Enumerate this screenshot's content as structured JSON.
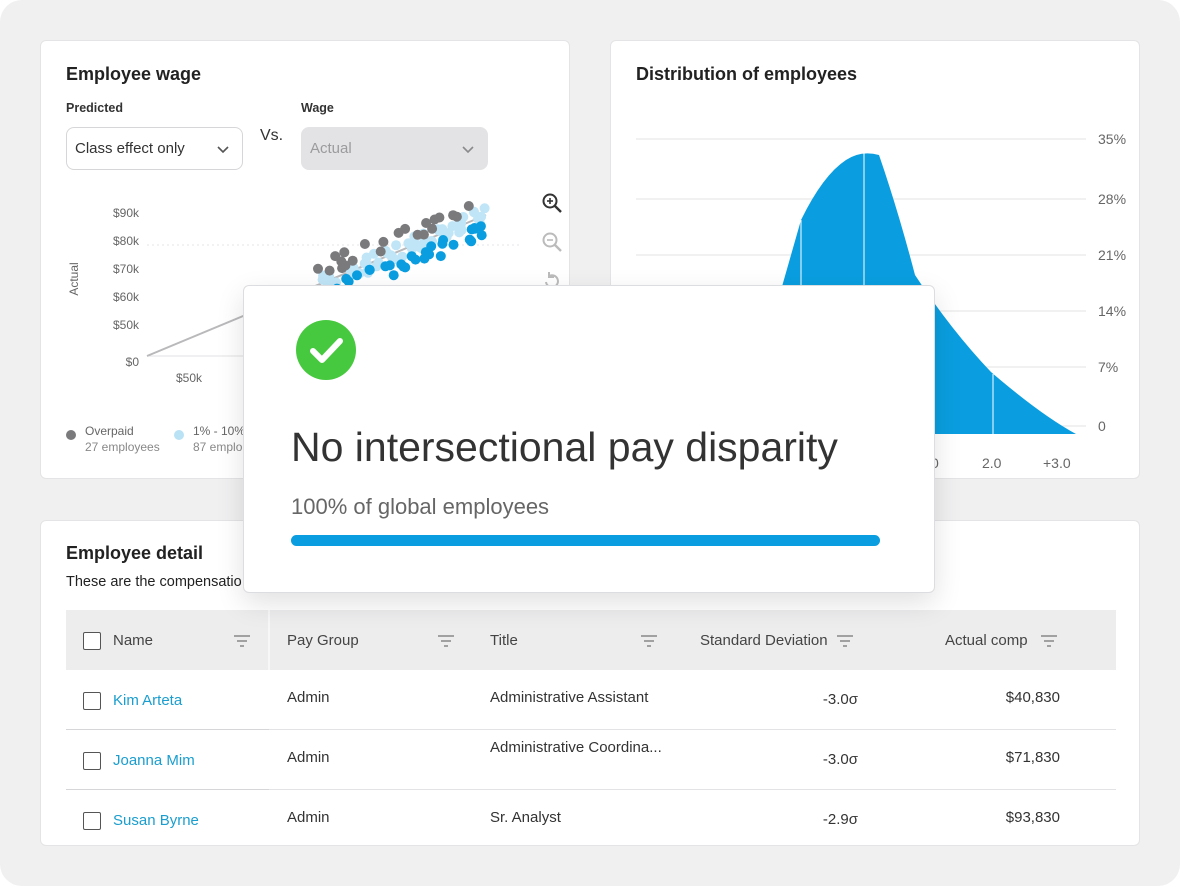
{
  "wage_card": {
    "title": "Employee wage",
    "predicted_label": "Predicted",
    "predicted_value": "Class effect only",
    "vs": "Vs.",
    "wage_label": "Wage",
    "wage_value": "Actual",
    "y_axis_label": "Actual",
    "y_ticks": [
      "$90k",
      "$80k",
      "$70k",
      "$60k",
      "$50k",
      "$0"
    ],
    "x_ticks": [
      "$50k"
    ],
    "legend": [
      {
        "label": "Overpaid",
        "count": "27 employees",
        "color": "#7a7a7d"
      },
      {
        "label": "1% - 10%",
        "count": "87 emplo",
        "color": "#b9e2f5"
      }
    ],
    "tool_icons": [
      "zoom-in-icon",
      "zoom-out-icon",
      "reset-icon"
    ]
  },
  "distribution_card": {
    "title": "Distribution of employees",
    "y_ticks": [
      "35%",
      "28%",
      "21%",
      "14%",
      "7%",
      "0"
    ],
    "x_ticks": [
      "0",
      "2.0",
      "+3.0"
    ],
    "fill_color": "#0a9ee0"
  },
  "detail_card": {
    "title": "Employee detail",
    "subtitle": "These are the compensatio",
    "columns": [
      "Name",
      "Pay Group",
      "Title",
      "Standard Deviation",
      "Actual comp"
    ],
    "rows": [
      {
        "name": "Kim Arteta",
        "pay_group": "Admin",
        "title": "Administrative Assistant",
        "std_dev": "-3.0σ",
        "actual_comp": "$40,830"
      },
      {
        "name": "Joanna Mim",
        "pay_group": "Admin",
        "title": "Administrative Coordina...",
        "std_dev": "-3.0σ",
        "actual_comp": "$71,830"
      },
      {
        "name": "Susan Byrne",
        "pay_group": "Admin",
        "title": "Sr. Analyst",
        "std_dev": "-2.9σ",
        "actual_comp": "$93,830"
      }
    ]
  },
  "modal": {
    "icon": "check-circle-icon",
    "title": "No intersectional pay disparity",
    "subtitle": "100% of global employees",
    "progress_fraction": 1.0,
    "colors": {
      "check": "#47c93f",
      "bar": "#0a9ee0"
    }
  }
}
